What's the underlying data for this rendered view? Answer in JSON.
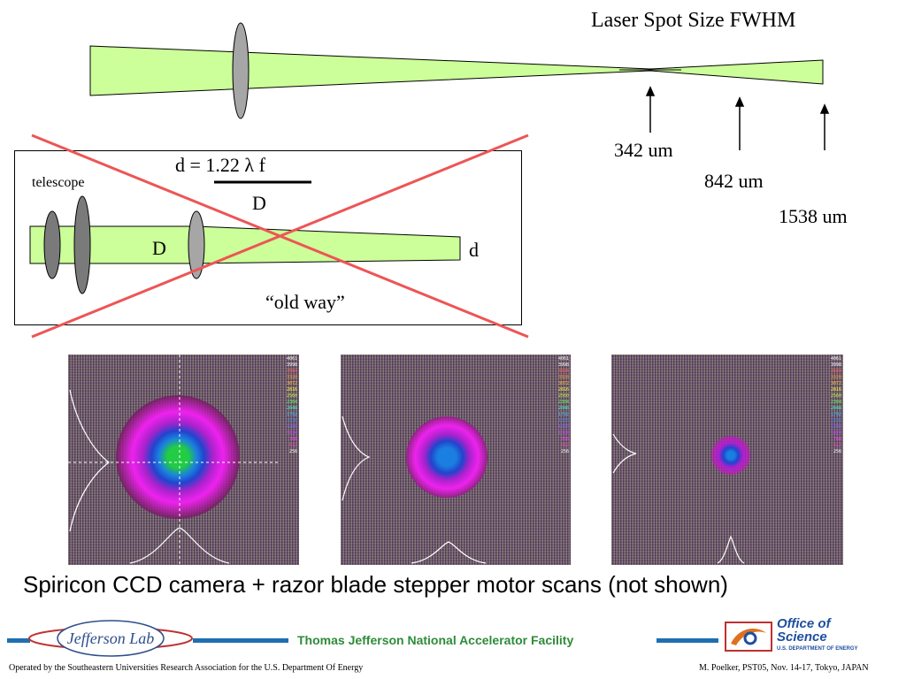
{
  "title": "Laser Spot Size FWHM",
  "spot_sizes": [
    "342 um",
    "842 um",
    "1538 um"
  ],
  "old_way": {
    "telescope_label": "telescope",
    "formula_numerator": "d = 1.22 λ f",
    "formula_denominator": "D",
    "beam_D_label": "D",
    "beam_d_label": "d",
    "caption": "“old way”"
  },
  "ccd_scale": [
    "4061",
    "3998",
    "3584",
    "3328",
    "3072",
    "2816",
    "2560",
    "2304",
    "2048",
    "1792",
    "1536",
    "1280",
    "1024",
    "768",
    "512",
    "256"
  ],
  "caption": "Spiricon CCD camera + razor blade stepper motor scans (not shown)",
  "footer": {
    "lab_logo_text": "Jefferson Lab",
    "org_name": "Thomas Jefferson National Accelerator Facility",
    "office_line1": "Office of",
    "office_line2": "Science",
    "office_line3": "U.S. DEPARTMENT OF ENERGY",
    "left_note": "Operated by the Southeastern Universities Research Association for the U.S. Department Of Energy",
    "right_note": "M. Poelker, PST05, Nov. 14-17, Tokyo, JAPAN"
  },
  "colors": {
    "beam_fill": "#ccff99",
    "lens_fill": "#a6a6a6",
    "cross": "#ee5555",
    "footer_blue": "#1f6fb0",
    "org_green": "#2e8b3a"
  }
}
